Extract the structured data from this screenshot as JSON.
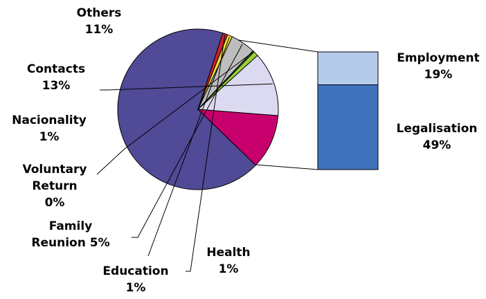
{
  "chart_data": {
    "type": "pie",
    "title": "",
    "pie": {
      "slices": [
        {
          "key": "main",
          "value": 68,
          "color": "#514a96"
        },
        {
          "key": "health",
          "value": 1,
          "color": "#d0202a"
        },
        {
          "key": "education",
          "value": 1,
          "color": "#f0e23c"
        },
        {
          "key": "family",
          "value": 5,
          "color": "#bdbdbd"
        },
        {
          "key": "voluntary",
          "value": 0.3,
          "color": "#3c7a32"
        },
        {
          "key": "nacionality",
          "value": 1,
          "color": "#9ccf3c"
        },
        {
          "key": "contacts",
          "value": 13,
          "color": "#dcdaf0"
        },
        {
          "key": "others",
          "value": 11,
          "color": "#c8006e"
        }
      ]
    },
    "breakdown": {
      "segments": [
        {
          "key": "legalisation",
          "value": 49,
          "color": "#3f74bd"
        },
        {
          "key": "employment",
          "value": 19,
          "color": "#b4cbeb"
        }
      ]
    },
    "labels": {
      "others": [
        "Others",
        "11%"
      ],
      "contacts": [
        "Contacts",
        "13%"
      ],
      "nacionality": [
        "Nacionality",
        "1%"
      ],
      "voluntary": [
        "Voluntary",
        "Return",
        "0%"
      ],
      "family": [
        "Family",
        "Reunion 5%"
      ],
      "education": [
        "Education",
        "1%"
      ],
      "health": [
        "Health",
        "1%"
      ],
      "employment": [
        "Employment",
        "19%"
      ],
      "legalisation": [
        "Legalisation",
        "49%"
      ]
    }
  }
}
